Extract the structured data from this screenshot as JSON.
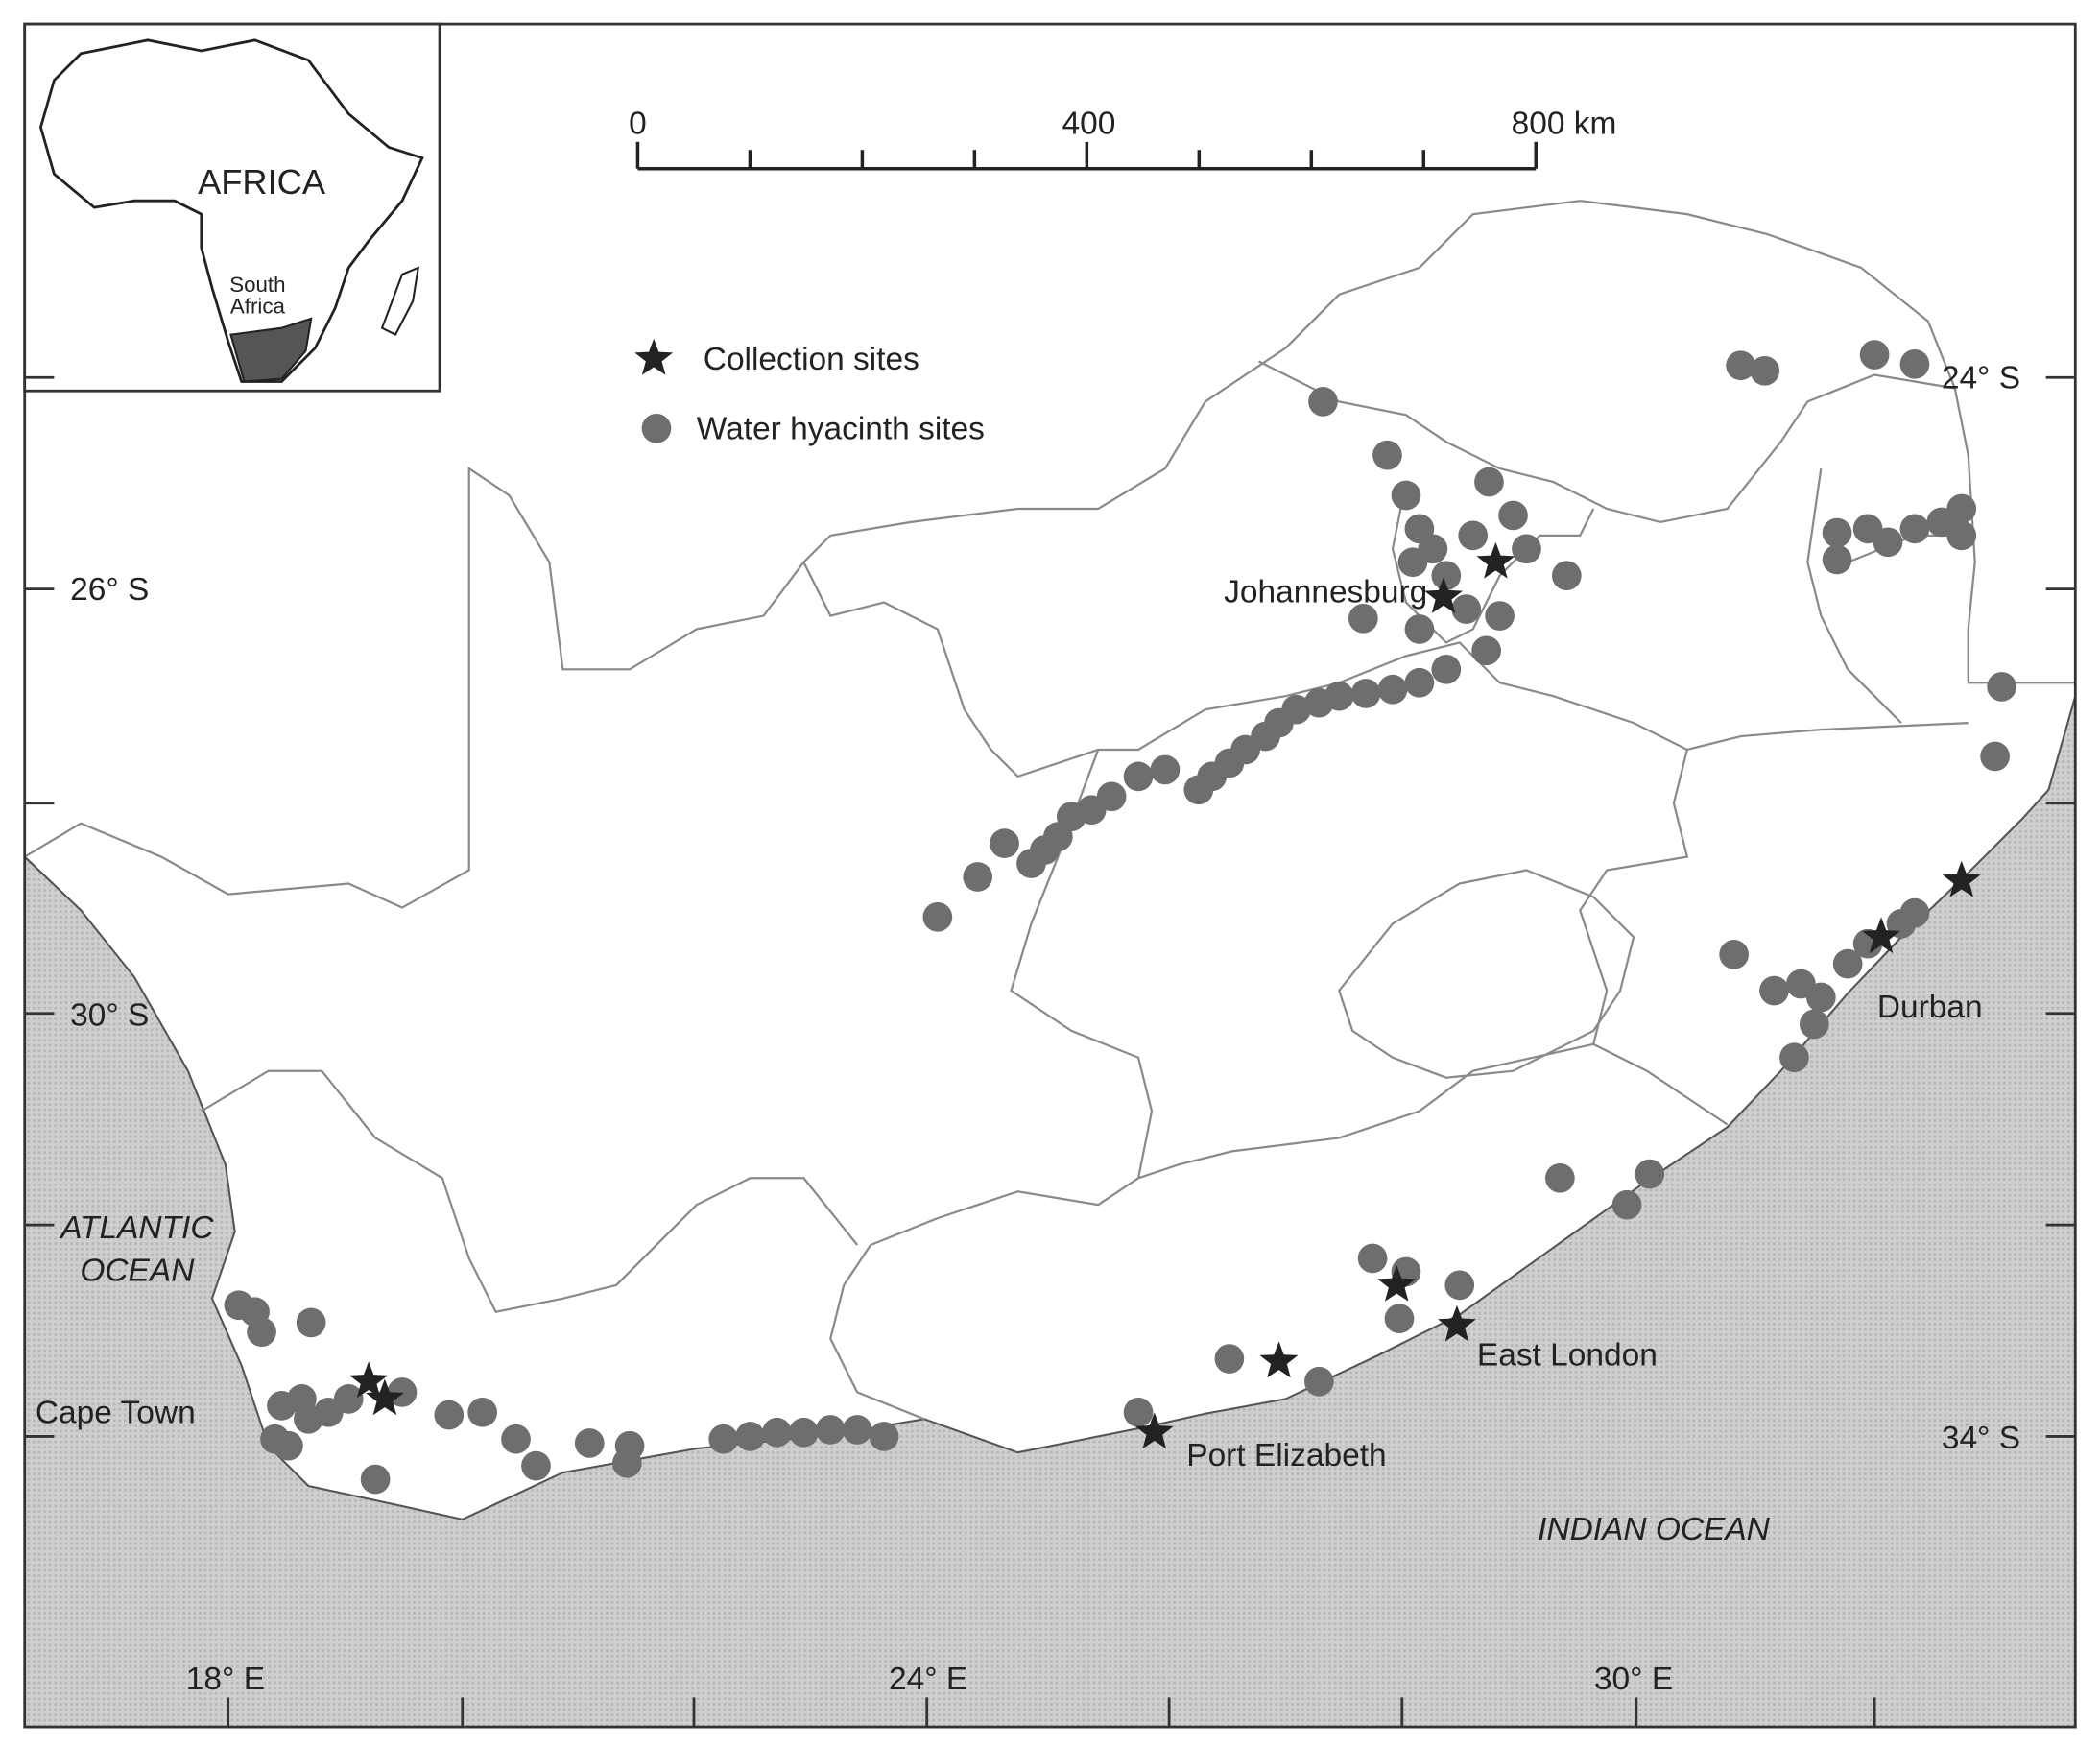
{
  "inset": {
    "label": "AFRICA",
    "country": [
      "South",
      "Africa"
    ]
  },
  "scale_bar": {
    "ticks": [
      "0",
      "400",
      "800 km"
    ]
  },
  "legend": [
    "Collection sites",
    "Water hyacinth sites"
  ],
  "latitude_labels": [
    "24° S",
    "26° S",
    "30° S",
    "34° S"
  ],
  "longitude_labels": [
    "18° E",
    "24° E",
    "30° E"
  ],
  "cities": [
    "Johannesburg",
    "Durban",
    "East London",
    "Port Elizabeth",
    "Cape Town"
  ],
  "oceans": {
    "atlantic": [
      "ATLANTIC",
      "OCEAN"
    ],
    "indian": "INDIAN OCEAN"
  }
}
